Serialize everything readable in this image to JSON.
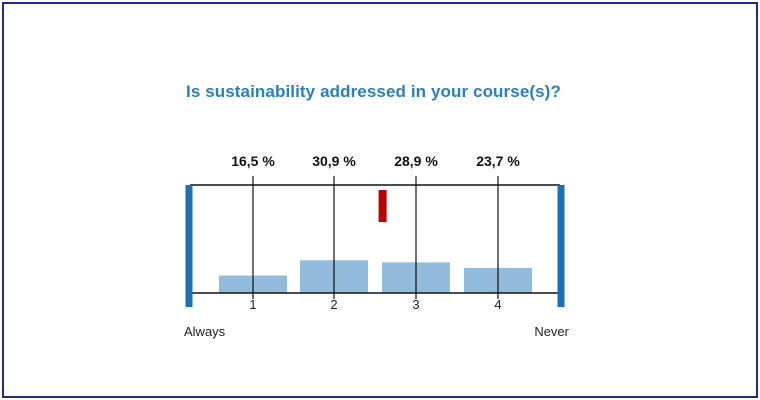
{
  "chart_data": {
    "type": "bar",
    "title": "Is sustainability addressed in your course(s)?",
    "categories": [
      "1",
      "2",
      "3",
      "4"
    ],
    "value_labels": [
      "16,5 %",
      "30,9 %",
      "28,9 %",
      "23,7 %"
    ],
    "values": [
      16.5,
      30.9,
      28.9,
      23.7
    ],
    "scale_min_label": "Always",
    "scale_max_label": "Never",
    "mean_marker": 2.6,
    "colors": {
      "bar": "#93bcdc",
      "end_caps": "#1f6fb8",
      "mean_marker": "#c00000",
      "title": "#2a7fc0"
    }
  }
}
